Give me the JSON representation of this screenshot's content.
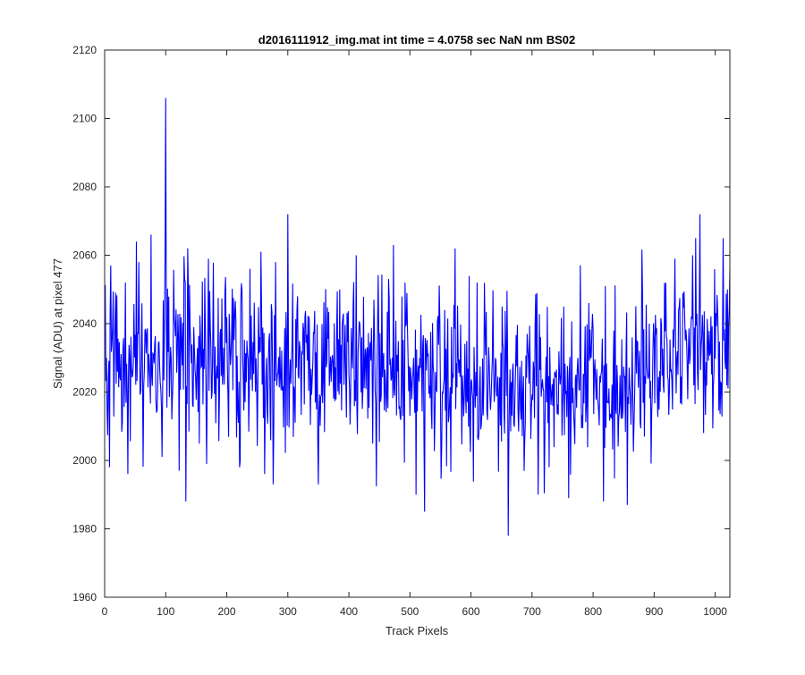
{
  "chart_data": {
    "type": "line",
    "title": "d2016111912_img.mat int time = 4.0758 sec  NaN nm BS02",
    "xlabel": "Track Pixels",
    "ylabel": "Signal (ADU) at pixel 477",
    "xlim": [
      0,
      1024
    ],
    "ylim": [
      1960,
      2120
    ],
    "xticks": [
      0,
      100,
      200,
      300,
      400,
      500,
      600,
      700,
      800,
      900,
      1000
    ],
    "yticks": [
      1960,
      1980,
      2000,
      2020,
      2040,
      2060,
      2080,
      2100,
      2120
    ],
    "grid": false,
    "legend": "none",
    "series": [
      {
        "color": "#0000ff",
        "x_start": 1,
        "x_step": 1,
        "count": 1024,
        "mean": 2028,
        "stddev": 12,
        "random_seed": 2016,
        "trend": [
          [
            0,
            2029
          ],
          [
            150,
            2032
          ],
          [
            300,
            2030
          ],
          [
            450,
            2028
          ],
          [
            600,
            2023
          ],
          [
            750,
            2021
          ],
          [
            850,
            2023
          ],
          [
            950,
            2030
          ],
          [
            1024,
            2034
          ]
        ],
        "notable_points": [
          [
            3,
            2030
          ],
          [
            6,
            2024
          ],
          [
            8,
            1998
          ],
          [
            10,
            2057
          ],
          [
            34,
            2052
          ],
          [
            38,
            1996
          ],
          [
            52,
            2064
          ],
          [
            56,
            2058
          ],
          [
            94,
            2001
          ],
          [
            99,
            2060
          ],
          [
            100,
            2106
          ],
          [
            101,
            2044
          ],
          [
            122,
            1997
          ],
          [
            131,
            2053
          ],
          [
            133,
            1988
          ],
          [
            136,
            2062
          ],
          [
            167,
            1999
          ],
          [
            170,
            2059
          ],
          [
            221,
            1998
          ],
          [
            238,
            2056
          ],
          [
            262,
            1996
          ],
          [
            280,
            2058
          ],
          [
            300,
            2072
          ],
          [
            303,
            2024
          ],
          [
            350,
            1993
          ],
          [
            385,
            2050
          ],
          [
            412,
            2060
          ],
          [
            441,
            2047
          ],
          [
            473,
            2063
          ],
          [
            492,
            2052
          ],
          [
            524,
            1985
          ],
          [
            557,
            2044
          ],
          [
            574,
            2062
          ],
          [
            610,
            2052
          ],
          [
            651,
            2045
          ],
          [
            661,
            1978
          ],
          [
            714,
            2036
          ],
          [
            752,
            2045
          ],
          [
            760,
            1989
          ],
          [
            793,
            2046
          ],
          [
            817,
            1988
          ],
          [
            856,
            1987
          ],
          [
            919,
            2052
          ],
          [
            935,
            2036
          ],
          [
            950,
            2042
          ],
          [
            963,
            2060
          ],
          [
            968,
            2065
          ],
          [
            975,
            2072
          ],
          [
            981,
            2008
          ],
          [
            1013,
            2065
          ],
          [
            1020,
            2050
          ],
          [
            1024,
            2056
          ]
        ]
      }
    ]
  }
}
